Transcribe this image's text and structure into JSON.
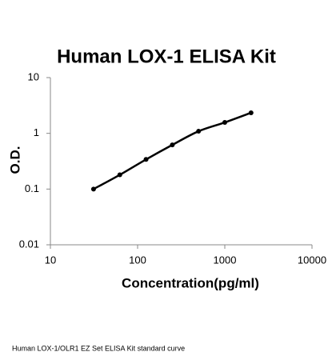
{
  "chart_data": {
    "type": "scatter-line",
    "title": "Human LOX-1 ELISA Kit",
    "x_label": "Concentration(pg/ml)",
    "y_label": "O.D.",
    "caption": "Human LOX-1/OLR1 EZ Set ELISA Kit standard curve",
    "x_log": true,
    "y_log": true,
    "xlim": [
      10,
      10000
    ],
    "xticks": [
      10,
      100,
      1000,
      10000
    ],
    "ylim": [
      0.01,
      10
    ],
    "yticks": [
      0.01,
      0.1,
      1,
      10
    ],
    "x": [
      31.25,
      62.5,
      125,
      250,
      500,
      1000,
      2000
    ],
    "series": [
      {
        "color": "#000000",
        "values": [
          0.1,
          0.18,
          0.34,
          0.62,
          1.09,
          1.57,
          2.34
        ]
      }
    ]
  }
}
